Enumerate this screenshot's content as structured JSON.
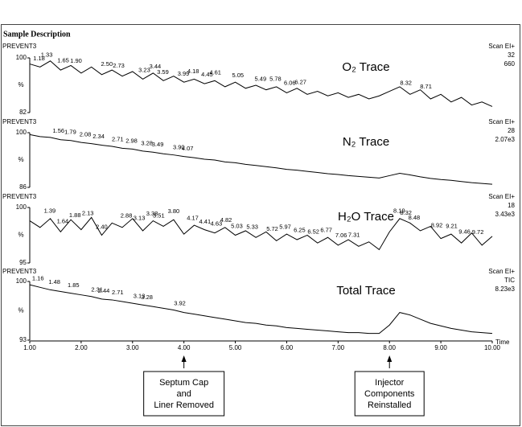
{
  "header": "Sample Description",
  "chart_data": [
    {
      "type": "line",
      "label": "PREVENT3",
      "title": "O₂ Trace",
      "scan_info": [
        "Scan EI+",
        "32",
        "660"
      ],
      "ylabel": "%",
      "xlim": [
        1,
        10
      ],
      "ylim": [
        82,
        100
      ],
      "yticks": [
        82,
        100
      ],
      "color": "#000000",
      "x": [
        1,
        1.2,
        1.4,
        1.6,
        1.8,
        2,
        2.2,
        2.4,
        2.6,
        2.8,
        3,
        3.2,
        3.4,
        3.6,
        3.8,
        4,
        4.2,
        4.4,
        4.6,
        4.8,
        5,
        5.2,
        5.4,
        5.6,
        5.8,
        6,
        6.2,
        6.4,
        6.6,
        6.8,
        7,
        7.2,
        7.4,
        7.6,
        7.8,
        8,
        8.2,
        8.4,
        8.6,
        8.8,
        9,
        9.2,
        9.4,
        9.6,
        9.8,
        10
      ],
      "values": [
        98,
        97,
        99,
        96,
        97.5,
        95,
        97,
        94.5,
        96,
        94,
        95.5,
        93,
        95,
        92.5,
        94,
        92,
        93,
        91.5,
        92.5,
        90.5,
        92,
        90,
        91,
        89.5,
        90.5,
        88.5,
        90,
        88,
        89,
        87.5,
        88.5,
        87,
        88,
        86.5,
        87.5,
        89,
        90.5,
        88,
        89.5,
        86.5,
        88,
        85.5,
        87,
        84.5,
        85.5,
        84
      ],
      "peak_labels": [
        1.18,
        1.33,
        1.65,
        {
          "value": 1.9,
          "label": "1.90"
        },
        {
          "value": 2.5,
          "label": "2.50"
        },
        2.73,
        3.23,
        3.44,
        3.59,
        3.99,
        4.18,
        4.45,
        4.61,
        5.05,
        5.49,
        5.78,
        6.06,
        6.27,
        8.32,
        8.71
      ]
    },
    {
      "type": "line",
      "label": "PREVENT3",
      "title": "N₂ Trace",
      "scan_info": [
        "Scan EI+",
        "28",
        "2.07e3"
      ],
      "ylabel": "%",
      "xlim": [
        1,
        10
      ],
      "ylim": [
        86,
        100
      ],
      "yticks": [
        86,
        100
      ],
      "color": "#000000",
      "x": [
        1,
        1.2,
        1.4,
        1.6,
        1.8,
        2,
        2.2,
        2.4,
        2.6,
        2.8,
        3,
        3.2,
        3.4,
        3.6,
        3.8,
        4,
        4.2,
        4.4,
        4.6,
        4.8,
        5,
        5.2,
        5.4,
        5.6,
        5.8,
        6,
        6.2,
        6.4,
        6.6,
        6.8,
        7,
        7.2,
        7.4,
        7.6,
        7.8,
        8,
        8.2,
        8.4,
        8.6,
        8.8,
        9,
        9.2,
        9.4,
        9.6,
        9.8,
        10
      ],
      "values": [
        99.5,
        99,
        98.8,
        98.2,
        98,
        97.5,
        97.2,
        96.8,
        96.5,
        96,
        95.8,
        95.3,
        95,
        94.6,
        94.3,
        93.9,
        93.6,
        93.2,
        93,
        92.5,
        92.3,
        91.9,
        91.6,
        91.3,
        91,
        90.6,
        90.4,
        90.1,
        89.8,
        89.5,
        89.3,
        89,
        88.8,
        88.6,
        88.4,
        89,
        89.6,
        89.2,
        88.7,
        88.3,
        88,
        87.8,
        87.5,
        87.2,
        87,
        86.8
      ],
      "peak_labels": [
        1.56,
        1.79,
        2.08,
        2.34,
        2.71,
        2.98,
        3.28,
        3.49,
        {
          "value": 3.9,
          "label": "3.90"
        },
        4.07
      ]
    },
    {
      "type": "line",
      "label": "PREVENT3",
      "title": "H₂O Trace",
      "scan_info": [
        "Scan EI+",
        "18",
        "3.43e3"
      ],
      "ylabel": "%",
      "xlim": [
        1,
        10
      ],
      "ylim": [
        95,
        100
      ],
      "yticks": [
        95,
        100
      ],
      "color": "#000000",
      "x": [
        1,
        1.2,
        1.4,
        1.6,
        1.8,
        2,
        2.2,
        2.4,
        2.6,
        2.8,
        3,
        3.2,
        3.4,
        3.6,
        3.8,
        4,
        4.2,
        4.4,
        4.6,
        4.8,
        5,
        5.2,
        5.4,
        5.6,
        5.8,
        6,
        6.2,
        6.4,
        6.6,
        6.8,
        7,
        7.2,
        7.4,
        7.6,
        7.8,
        8,
        8.2,
        8.4,
        8.6,
        8.8,
        9,
        9.2,
        9.4,
        9.6,
        9.8,
        10
      ],
      "values": [
        98.8,
        98.2,
        99,
        97.8,
        98.9,
        98,
        99.1,
        97.5,
        98.6,
        98.2,
        99,
        97.9,
        98.8,
        98.3,
        98.9,
        97.6,
        98.4,
        98,
        97.7,
        98.2,
        97.5,
        97.9,
        97.3,
        97.8,
        97,
        97.6,
        97.1,
        97.5,
        96.8,
        97.3,
        96.6,
        97.1,
        96.5,
        96.9,
        96.2,
        97.8,
        99,
        98.6,
        97.9,
        98.3,
        97.2,
        97.6,
        96.8,
        97.7,
        96.6,
        97.4
      ],
      "peak_labels": [
        1.39,
        1.64,
        1.88,
        2.13,
        {
          "value": 2.4,
          "label": "2.40"
        },
        2.88,
        3.13,
        3.38,
        3.51,
        {
          "value": 3.8,
          "label": "3.80"
        },
        4.17,
        4.41,
        4.63,
        4.82,
        5.03,
        5.33,
        5.72,
        5.97,
        6.25,
        6.52,
        6.77,
        7.06,
        7.31,
        8.19,
        8.32,
        8.48,
        8.92,
        9.21,
        9.46,
        9.72
      ]
    },
    {
      "type": "line",
      "label": "PREVENT3",
      "title": "Total Trace",
      "scan_info": [
        "Scan EI+",
        "TIC",
        "8.23e3"
      ],
      "ylabel": "%",
      "xlim": [
        1,
        10
      ],
      "ylim": [
        93,
        100
      ],
      "yticks": [
        93,
        100
      ],
      "color": "#000000",
      "xlabel": "Time",
      "xticks": [
        {
          "value": 1,
          "label": "1.00"
        },
        {
          "value": 2,
          "label": "2.00"
        },
        {
          "value": 3,
          "label": "3.00"
        },
        {
          "value": 4,
          "label": "4.00"
        },
        {
          "value": 5,
          "label": "5.00"
        },
        {
          "value": 6,
          "label": "6.00"
        },
        {
          "value": 7,
          "label": "7.00"
        },
        {
          "value": 8,
          "label": "8.00"
        },
        {
          "value": 9,
          "label": "9.00"
        },
        {
          "value": 10,
          "label": "10.00"
        }
      ],
      "x": [
        1,
        1.2,
        1.4,
        1.6,
        1.8,
        2,
        2.2,
        2.4,
        2.6,
        2.8,
        3,
        3.2,
        3.4,
        3.6,
        3.8,
        4,
        4.2,
        4.4,
        4.6,
        4.8,
        5,
        5.2,
        5.4,
        5.6,
        5.8,
        6,
        6.2,
        6.4,
        6.6,
        6.8,
        7,
        7.2,
        7.4,
        7.6,
        7.8,
        8,
        8.2,
        8.4,
        8.6,
        8.8,
        9,
        9.2,
        9.4,
        9.6,
        9.8,
        10
      ],
      "values": [
        99.6,
        99.3,
        99,
        98.8,
        98.6,
        98.4,
        98.2,
        97.9,
        97.8,
        97.6,
        97.4,
        97.2,
        97,
        96.8,
        96.6,
        96.3,
        96.1,
        95.9,
        95.7,
        95.5,
        95.3,
        95.1,
        95,
        94.8,
        94.7,
        94.5,
        94.4,
        94.3,
        94.2,
        94.1,
        94,
        93.9,
        93.9,
        93.8,
        93.8,
        94.8,
        96.3,
        96,
        95.5,
        95,
        94.7,
        94.4,
        94.2,
        94,
        93.9,
        93.8
      ],
      "peak_labels": [
        1.16,
        1.48,
        1.85,
        2.31,
        2.44,
        2.71,
        3.13,
        3.28,
        3.92
      ]
    }
  ],
  "annotations": [
    {
      "x": 4,
      "text": [
        "Septum Cap",
        "and",
        "Liner Removed"
      ]
    },
    {
      "x": 8,
      "text": [
        "Injector",
        "Components",
        "Reinstalled"
      ]
    }
  ]
}
